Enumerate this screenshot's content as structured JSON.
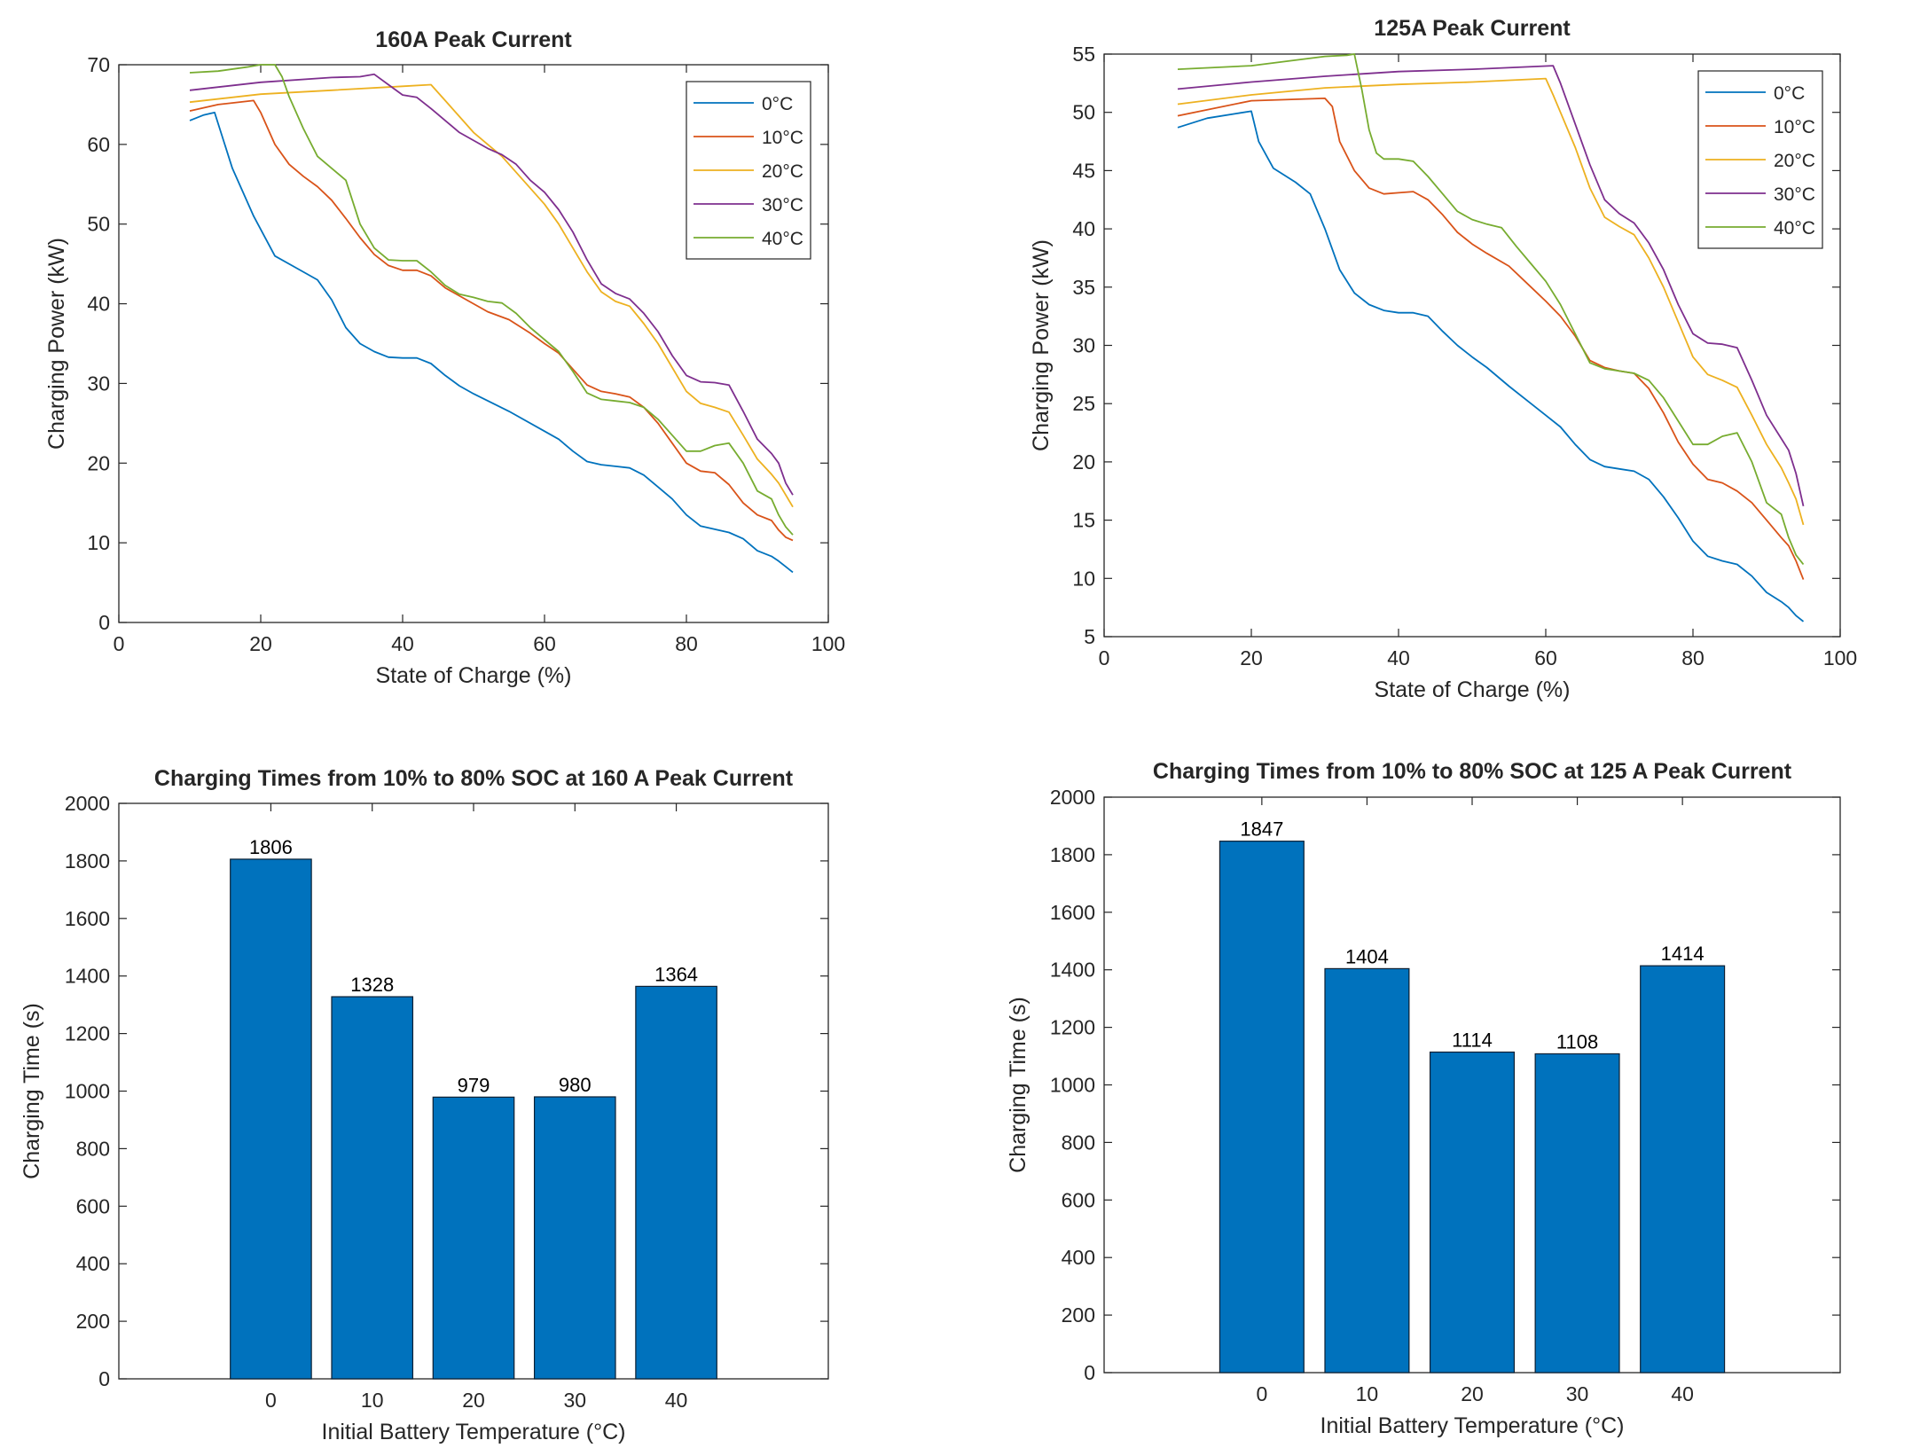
{
  "chart_data": [
    {
      "type": "line",
      "title": "160A Peak Current",
      "xlabel": "State of Charge (%)",
      "ylabel": "Charging Power (kW)",
      "xlim": [
        0,
        100
      ],
      "ylim": [
        0,
        70
      ],
      "xticks": [
        "0",
        "20",
        "40",
        "60",
        "80",
        "100"
      ],
      "yticks": [
        "0",
        "10",
        "20",
        "30",
        "40",
        "50",
        "60",
        "70"
      ],
      "legend_position": "top-right",
      "grid": false,
      "series": [
        {
          "name": "0°C",
          "color": "#0072BD",
          "x": [
            10,
            12,
            13.5,
            16,
            19,
            22,
            25,
            28,
            30,
            32,
            34,
            36,
            38,
            40,
            42,
            44,
            46,
            48,
            50,
            55,
            60,
            62,
            64,
            66,
            68,
            70,
            72,
            74,
            76,
            78,
            80,
            82,
            84,
            86,
            88,
            90,
            92,
            93,
            94,
            95
          ],
          "y": [
            63,
            63.7,
            64,
            57,
            51,
            46,
            44.5,
            43,
            40.5,
            37,
            35,
            34,
            33.3,
            33.2,
            33.2,
            32.5,
            31,
            29.7,
            28.7,
            26.5,
            24,
            23,
            21.5,
            20.2,
            19.8,
            19.6,
            19.4,
            18.5,
            17,
            15.5,
            13.5,
            12.1,
            11.7,
            11.3,
            10.5,
            9,
            8.3,
            7.7,
            7,
            6.3
          ]
        },
        {
          "name": "10°C",
          "color": "#D95319",
          "x": [
            10,
            14,
            19,
            20,
            22,
            24,
            26,
            28,
            30,
            32,
            34,
            36,
            38,
            40,
            42,
            44,
            46,
            48,
            50,
            52,
            55,
            58,
            60,
            62,
            64,
            66,
            68,
            70,
            72,
            74,
            76,
            78,
            80,
            82,
            84,
            86,
            88,
            90,
            92,
            93,
            94,
            95
          ],
          "y": [
            64.2,
            65,
            65.5,
            64,
            60,
            57.5,
            56,
            54.7,
            53,
            50.7,
            48.3,
            46.2,
            44.8,
            44.2,
            44.2,
            43.5,
            42,
            41,
            40,
            39,
            38,
            36.3,
            35,
            33.8,
            31.8,
            29.8,
            29,
            28.7,
            28.3,
            27,
            25,
            22.5,
            20,
            19,
            18.8,
            17.3,
            15,
            13.5,
            12.8,
            11.6,
            10.7,
            10.3
          ]
        },
        {
          "name": "20°C",
          "color": "#EDB120",
          "x": [
            10,
            20,
            30,
            40,
            44,
            46,
            48,
            50,
            52,
            54,
            56,
            58,
            60,
            62,
            64,
            66,
            68,
            70,
            72,
            74,
            76,
            78,
            80,
            82,
            84,
            86,
            88,
            90,
            92,
            93,
            94,
            95
          ],
          "y": [
            65.3,
            66.3,
            66.8,
            67.3,
            67.5,
            65.5,
            63.5,
            61.5,
            60,
            58.5,
            56.5,
            54.5,
            52.5,
            50,
            47,
            44,
            41.5,
            40.3,
            39.7,
            37.5,
            35,
            32,
            29,
            27.5,
            27,
            26.4,
            23.5,
            20.5,
            18.6,
            17.5,
            16,
            14.5
          ]
        },
        {
          "name": "30°C",
          "color": "#7E2F8E",
          "x": [
            10,
            20,
            30,
            34,
            36,
            38,
            40,
            42,
            44,
            46,
            48,
            50,
            52,
            54,
            56,
            58,
            60,
            62,
            64,
            66,
            68,
            70,
            72,
            74,
            76,
            78,
            80,
            82,
            84,
            86,
            88,
            90,
            92,
            93,
            94,
            95
          ],
          "y": [
            66.8,
            67.8,
            68.4,
            68.5,
            68.8,
            67.5,
            66.2,
            65.9,
            64.5,
            63,
            61.5,
            60.5,
            59.5,
            58.7,
            57.5,
            55.5,
            54,
            51.8,
            49,
            45.5,
            42.5,
            41.3,
            40.6,
            38.8,
            36.5,
            33.5,
            31,
            30.2,
            30.1,
            29.8,
            26.5,
            23,
            21.2,
            20,
            17.5,
            16
          ]
        },
        {
          "name": "40°C",
          "color": "#77AC30",
          "x": [
            10,
            14,
            18,
            20,
            22,
            23,
            24,
            26,
            28,
            30,
            32,
            34,
            36,
            38,
            40,
            42,
            44,
            46,
            48,
            50,
            52,
            54,
            56,
            58,
            60,
            62,
            64,
            66,
            68,
            70,
            72,
            74,
            76,
            78,
            80,
            82,
            84,
            86,
            88,
            90,
            92,
            93,
            94,
            95
          ],
          "y": [
            69,
            69.2,
            69.7,
            70,
            70,
            68.5,
            66,
            62,
            58.5,
            57,
            55.5,
            50,
            47,
            45.5,
            45.4,
            45.4,
            44,
            42.3,
            41.2,
            40.8,
            40.3,
            40.1,
            38.8,
            37,
            35.5,
            34,
            31.5,
            28.8,
            28,
            27.8,
            27.6,
            27,
            25.5,
            23.5,
            21.5,
            21.5,
            22.2,
            22.5,
            20,
            16.5,
            15.5,
            13.5,
            12,
            11
          ]
        }
      ]
    },
    {
      "type": "line",
      "title": "125A Peak Current",
      "xlabel": "State of Charge (%)",
      "ylabel": "Charging Power (kW)",
      "xlim": [
        0,
        100
      ],
      "ylim": [
        5,
        55
      ],
      "xticks": [
        "0",
        "20",
        "40",
        "60",
        "80",
        "100"
      ],
      "yticks": [
        "5",
        "10",
        "15",
        "20",
        "25",
        "30",
        "35",
        "40",
        "45",
        "50",
        "55"
      ],
      "legend_position": "top-right",
      "grid": false,
      "series": [
        {
          "name": "0°C",
          "color": "#0072BD",
          "x": [
            10,
            14,
            18,
            20,
            21,
            23,
            26,
            28,
            30,
            32,
            34,
            36,
            38,
            40,
            42,
            44,
            46,
            48,
            50,
            52,
            55,
            58,
            60,
            62,
            64,
            66,
            68,
            70,
            72,
            74,
            76,
            78,
            80,
            82,
            84,
            86,
            88,
            90,
            92,
            93,
            94,
            95
          ],
          "y": [
            48.7,
            49.5,
            49.9,
            50.1,
            47.5,
            45.2,
            44,
            43,
            40,
            36.5,
            34.5,
            33.5,
            33,
            32.8,
            32.8,
            32.5,
            31.2,
            30,
            29,
            28.1,
            26.5,
            25,
            24,
            23,
            21.5,
            20.2,
            19.6,
            19.4,
            19.2,
            18.5,
            17,
            15.2,
            13.2,
            11.9,
            11.5,
            11.2,
            10.2,
            8.8,
            8,
            7.5,
            6.8,
            6.3
          ]
        },
        {
          "name": "10°C",
          "color": "#D95319",
          "x": [
            10,
            20,
            30,
            31,
            32,
            34,
            36,
            38,
            40,
            42,
            44,
            46,
            48,
            50,
            52,
            55,
            58,
            60,
            62,
            64,
            66,
            68,
            70,
            72,
            74,
            76,
            78,
            80,
            82,
            84,
            86,
            88,
            90,
            92,
            93,
            94,
            95
          ],
          "y": [
            49.7,
            51,
            51.2,
            50.5,
            47.5,
            45,
            43.5,
            43,
            43.1,
            43.2,
            42.5,
            41.2,
            39.7,
            38.7,
            37.9,
            36.8,
            35,
            33.8,
            32.5,
            30.8,
            28.7,
            28.1,
            27.8,
            27.6,
            26.3,
            24.2,
            21.7,
            19.8,
            18.5,
            18.2,
            17.5,
            16.5,
            15,
            13.5,
            12.8,
            11.5,
            9.9
          ]
        },
        {
          "name": "20°C",
          "color": "#EDB120",
          "x": [
            10,
            20,
            30,
            40,
            50,
            60,
            61,
            62,
            64,
            66,
            68,
            70,
            72,
            74,
            76,
            78,
            80,
            82,
            84,
            86,
            88,
            90,
            92,
            93,
            94,
            95
          ],
          "y": [
            50.7,
            51.5,
            52.1,
            52.4,
            52.6,
            52.9,
            51.5,
            50,
            47,
            43.5,
            41,
            40.2,
            39.5,
            37.5,
            35,
            32,
            29,
            27.5,
            27,
            26.4,
            24,
            21.5,
            19.5,
            18.2,
            16.8,
            14.6
          ]
        },
        {
          "name": "30°C",
          "color": "#7E2F8E",
          "x": [
            10,
            20,
            30,
            40,
            50,
            61,
            62,
            64,
            66,
            68,
            70,
            72,
            74,
            76,
            78,
            80,
            82,
            84,
            86,
            88,
            90,
            92,
            93,
            94,
            95
          ],
          "y": [
            52,
            52.6,
            53.1,
            53.5,
            53.7,
            54,
            52.5,
            49,
            45.5,
            42.5,
            41.3,
            40.5,
            38.8,
            36.5,
            33.5,
            31,
            30.2,
            30.1,
            29.8,
            27,
            24,
            22,
            21,
            19,
            16.2
          ]
        },
        {
          "name": "40°C",
          "color": "#77AC30",
          "x": [
            10,
            20,
            30,
            33,
            34,
            35,
            36,
            37,
            38,
            40,
            42,
            44,
            46,
            48,
            50,
            52,
            54,
            56,
            58,
            60,
            62,
            64,
            66,
            68,
            70,
            72,
            74,
            76,
            78,
            80,
            82,
            84,
            86,
            88,
            90,
            92,
            93,
            94,
            95
          ],
          "y": [
            53.7,
            54,
            54.8,
            54.9,
            55,
            52,
            48.5,
            46.5,
            46,
            46,
            45.8,
            44.5,
            43,
            41.5,
            40.8,
            40.4,
            40.1,
            38.5,
            37,
            35.5,
            33.5,
            31,
            28.5,
            28,
            27.8,
            27.6,
            27,
            25.5,
            23.5,
            21.5,
            21.5,
            22.2,
            22.5,
            20,
            16.5,
            15.5,
            13.5,
            12,
            11.2
          ]
        }
      ]
    },
    {
      "type": "bar",
      "title": "Charging Times from 10% to 80% SOC at 160 A Peak Current",
      "xlabel": "Initial Battery Temperature (°C)",
      "ylabel": "Charging Time (s)",
      "categories": [
        "0",
        "10",
        "20",
        "30",
        "40"
      ],
      "values": [
        1806,
        1328,
        979,
        980,
        1364
      ],
      "data_labels": [
        "1806",
        "1328",
        "979",
        "980",
        "1364"
      ],
      "ylim": [
        0,
        2000
      ],
      "yticks": [
        "0",
        "200",
        "400",
        "600",
        "800",
        "1000",
        "1200",
        "1400",
        "1600",
        "1800",
        "2000"
      ],
      "bar_color": "#0072BD",
      "grid": false
    },
    {
      "type": "bar",
      "title": "Charging Times from 10% to 80% SOC at 125 A Peak Current",
      "xlabel": "Initial Battery Temperature (°C)",
      "ylabel": "Charging Time (s)",
      "categories": [
        "0",
        "10",
        "20",
        "30",
        "40"
      ],
      "values": [
        1847,
        1404,
        1114,
        1108,
        1414
      ],
      "data_labels": [
        "1847",
        "1404",
        "1114",
        "1108",
        "1414"
      ],
      "ylim": [
        0,
        2000
      ],
      "yticks": [
        "0",
        "200",
        "400",
        "600",
        "800",
        "1000",
        "1200",
        "1400",
        "1600",
        "1800",
        "2000"
      ],
      "bar_color": "#0072BD",
      "grid": false
    }
  ]
}
